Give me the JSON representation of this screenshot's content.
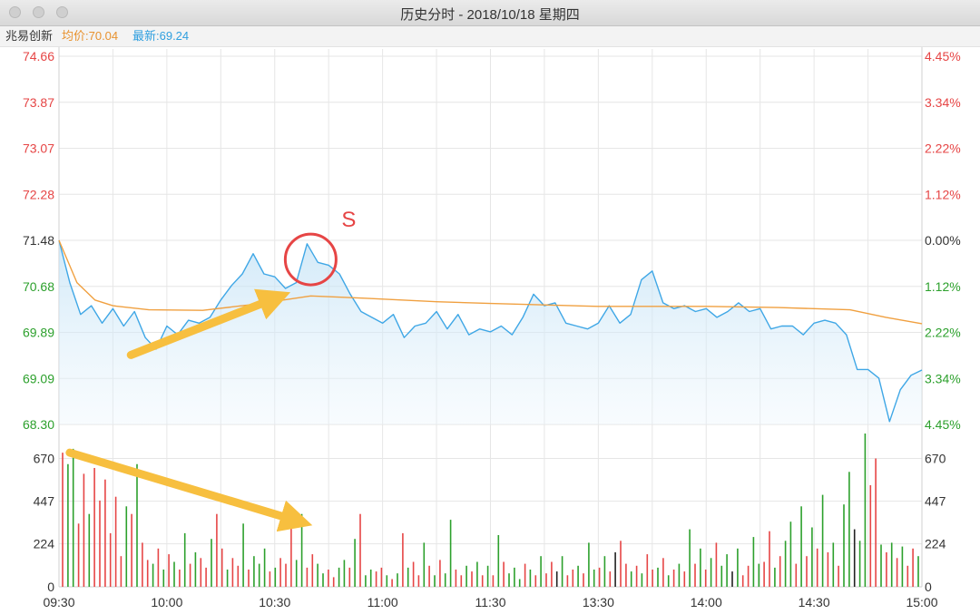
{
  "window": {
    "title": "历史分时 - 2018/10/18 星期四"
  },
  "info": {
    "stock_name": "兆易创新",
    "avg_label": "均价:70.04",
    "last_label": "最新:69.24"
  },
  "colors": {
    "up": "#e64545",
    "down": "#2ca02c",
    "neutral": "#333333",
    "price_line": "#3fa7e6",
    "avg_line": "#f0a040",
    "arrow": "#f7bf3f",
    "circle": "#e64545",
    "grid": "#e6e6e6"
  },
  "chart_data": {
    "type": "line",
    "title": "历史分时 - 2018/10/18 星期四",
    "date": "2018/10/18",
    "prev_close": 71.48,
    "price_axis": {
      "ticks": [
        "74.66",
        "73.87",
        "73.07",
        "72.28",
        "71.48",
        "70.68",
        "69.89",
        "69.09",
        "68.30"
      ],
      "ylim": [
        68.3,
        74.66
      ]
    },
    "pct_axis": {
      "ticks": [
        "4.45%",
        "3.34%",
        "2.22%",
        "1.12%",
        "0.00%",
        "1.12%",
        "2.22%",
        "3.34%",
        "4.45%"
      ]
    },
    "volume_axis": {
      "ticks": [
        "670",
        "447",
        "224",
        "0"
      ],
      "ylim": [
        0,
        800
      ]
    },
    "time_axis": {
      "labels": [
        "09:30",
        "10:00",
        "10:30",
        "11:00",
        "11:30",
        "13:30",
        "14:00",
        "14:30",
        "15:00"
      ]
    },
    "series": [
      {
        "name": "最新",
        "points": [
          [
            "09:30",
            71.48
          ],
          [
            "09:33",
            70.75
          ],
          [
            "09:36",
            70.2
          ],
          [
            "09:39",
            70.35
          ],
          [
            "09:42",
            70.05
          ],
          [
            "09:45",
            70.3
          ],
          [
            "09:48",
            70.0
          ],
          [
            "09:51",
            70.25
          ],
          [
            "09:54",
            69.8
          ],
          [
            "09:57",
            69.6
          ],
          [
            "10:00",
            70.0
          ],
          [
            "10:03",
            69.85
          ],
          [
            "10:06",
            70.1
          ],
          [
            "10:09",
            70.05
          ],
          [
            "10:12",
            70.15
          ],
          [
            "10:15",
            70.45
          ],
          [
            "10:18",
            70.7
          ],
          [
            "10:21",
            70.9
          ],
          [
            "10:24",
            71.25
          ],
          [
            "10:27",
            70.9
          ],
          [
            "10:30",
            70.85
          ],
          [
            "10:33",
            70.65
          ],
          [
            "10:36",
            70.75
          ],
          [
            "10:39",
            71.42
          ],
          [
            "10:42",
            71.1
          ],
          [
            "10:45",
            71.05
          ],
          [
            "10:48",
            70.9
          ],
          [
            "10:51",
            70.55
          ],
          [
            "10:54",
            70.25
          ],
          [
            "10:57",
            70.15
          ],
          [
            "11:00",
            70.05
          ],
          [
            "11:03",
            70.2
          ],
          [
            "11:06",
            69.8
          ],
          [
            "11:09",
            70.0
          ],
          [
            "11:12",
            70.05
          ],
          [
            "11:15",
            70.25
          ],
          [
            "11:18",
            69.95
          ],
          [
            "11:21",
            70.2
          ],
          [
            "11:24",
            69.85
          ],
          [
            "11:27",
            69.95
          ],
          [
            "11:30",
            69.9
          ],
          [
            "13:03",
            70.0
          ],
          [
            "13:06",
            69.85
          ],
          [
            "13:09",
            70.15
          ],
          [
            "13:12",
            70.55
          ],
          [
            "13:15",
            70.35
          ],
          [
            "13:18",
            70.4
          ],
          [
            "13:21",
            70.05
          ],
          [
            "13:24",
            70.0
          ],
          [
            "13:27",
            69.95
          ],
          [
            "13:30",
            70.05
          ],
          [
            "13:33",
            70.35
          ],
          [
            "13:36",
            70.05
          ],
          [
            "13:39",
            70.2
          ],
          [
            "13:42",
            70.8
          ],
          [
            "13:45",
            70.95
          ],
          [
            "13:48",
            70.4
          ],
          [
            "13:51",
            70.3
          ],
          [
            "13:54",
            70.35
          ],
          [
            "13:57",
            70.25
          ],
          [
            "14:00",
            70.3
          ],
          [
            "14:03",
            70.15
          ],
          [
            "14:06",
            70.25
          ],
          [
            "14:09",
            70.4
          ],
          [
            "14:12",
            70.25
          ],
          [
            "14:15",
            70.3
          ],
          [
            "14:18",
            69.95
          ],
          [
            "14:21",
            70.0
          ],
          [
            "14:24",
            70.0
          ],
          [
            "14:27",
            69.85
          ],
          [
            "14:30",
            70.05
          ],
          [
            "14:33",
            70.1
          ],
          [
            "14:36",
            70.05
          ],
          [
            "14:39",
            69.85
          ],
          [
            "14:42",
            69.25
          ],
          [
            "14:45",
            69.25
          ],
          [
            "14:48",
            69.1
          ],
          [
            "14:51",
            68.35
          ],
          [
            "14:54",
            68.9
          ],
          [
            "14:57",
            69.15
          ],
          [
            "15:00",
            69.24
          ]
        ]
      },
      {
        "name": "均价",
        "points": [
          [
            "09:30",
            71.48
          ],
          [
            "09:35",
            70.75
          ],
          [
            "09:40",
            70.45
          ],
          [
            "09:45",
            70.35
          ],
          [
            "09:55",
            70.28
          ],
          [
            "10:10",
            70.27
          ],
          [
            "10:25",
            70.38
          ],
          [
            "10:40",
            70.52
          ],
          [
            "10:55",
            70.48
          ],
          [
            "11:15",
            70.42
          ],
          [
            "11:30",
            70.39
          ],
          [
            "13:30",
            70.34
          ],
          [
            "14:00",
            70.34
          ],
          [
            "14:20",
            70.32
          ],
          [
            "14:40",
            70.28
          ],
          [
            "14:50",
            70.15
          ],
          [
            "15:00",
            70.04
          ]
        ]
      }
    ],
    "volume": [
      [
        700,
        "up"
      ],
      [
        640,
        "down"
      ],
      [
        720,
        "down"
      ],
      [
        330,
        "up"
      ],
      [
        590,
        "up"
      ],
      [
        380,
        "down"
      ],
      [
        620,
        "up"
      ],
      [
        450,
        "up"
      ],
      [
        560,
        "up"
      ],
      [
        280,
        "up"
      ],
      [
        470,
        "up"
      ],
      [
        160,
        "up"
      ],
      [
        420,
        "down"
      ],
      [
        380,
        "up"
      ],
      [
        640,
        "down"
      ],
      [
        230,
        "up"
      ],
      [
        140,
        "up"
      ],
      [
        120,
        "down"
      ],
      [
        200,
        "up"
      ],
      [
        90,
        "down"
      ],
      [
        170,
        "up"
      ],
      [
        130,
        "down"
      ],
      [
        90,
        "up"
      ],
      [
        280,
        "down"
      ],
      [
        120,
        "up"
      ],
      [
        180,
        "down"
      ],
      [
        150,
        "up"
      ],
      [
        100,
        "up"
      ],
      [
        250,
        "down"
      ],
      [
        380,
        "up"
      ],
      [
        200,
        "up"
      ],
      [
        90,
        "down"
      ],
      [
        150,
        "up"
      ],
      [
        110,
        "up"
      ],
      [
        330,
        "down"
      ],
      [
        90,
        "up"
      ],
      [
        160,
        "down"
      ],
      [
        120,
        "down"
      ],
      [
        200,
        "down"
      ],
      [
        80,
        "up"
      ],
      [
        100,
        "down"
      ],
      [
        150,
        "up"
      ],
      [
        120,
        "up"
      ],
      [
        420,
        "up"
      ],
      [
        140,
        "down"
      ],
      [
        380,
        "down"
      ],
      [
        100,
        "up"
      ],
      [
        170,
        "up"
      ],
      [
        120,
        "down"
      ],
      [
        70,
        "down"
      ],
      [
        90,
        "up"
      ],
      [
        50,
        "up"
      ],
      [
        100,
        "down"
      ],
      [
        140,
        "down"
      ],
      [
        100,
        "up"
      ],
      [
        250,
        "down"
      ],
      [
        380,
        "up"
      ],
      [
        60,
        "down"
      ],
      [
        90,
        "down"
      ],
      [
        80,
        "up"
      ],
      [
        100,
        "up"
      ],
      [
        60,
        "down"
      ],
      [
        40,
        "up"
      ],
      [
        70,
        "down"
      ],
      [
        280,
        "up"
      ],
      [
        100,
        "down"
      ],
      [
        130,
        "up"
      ],
      [
        60,
        "up"
      ],
      [
        230,
        "down"
      ],
      [
        110,
        "up"
      ],
      [
        60,
        "down"
      ],
      [
        140,
        "up"
      ],
      [
        70,
        "down"
      ],
      [
        350,
        "down"
      ],
      [
        90,
        "up"
      ],
      [
        60,
        "up"
      ],
      [
        110,
        "down"
      ],
      [
        80,
        "up"
      ],
      [
        130,
        "down"
      ],
      [
        60,
        "up"
      ],
      [
        110,
        "down"
      ],
      [
        60,
        "up"
      ],
      [
        270,
        "down"
      ],
      [
        130,
        "up"
      ],
      [
        70,
        "down"
      ],
      [
        100,
        "down"
      ],
      [
        40,
        "down"
      ],
      [
        120,
        "up"
      ],
      [
        90,
        "down"
      ],
      [
        60,
        "up"
      ],
      [
        160,
        "down"
      ],
      [
        70,
        "up"
      ],
      [
        130,
        "up"
      ],
      [
        80,
        "neutral"
      ],
      [
        160,
        "down"
      ],
      [
        60,
        "up"
      ],
      [
        90,
        "up"
      ],
      [
        110,
        "down"
      ],
      [
        70,
        "up"
      ],
      [
        230,
        "down"
      ],
      [
        90,
        "down"
      ],
      [
        100,
        "up"
      ],
      [
        160,
        "down"
      ],
      [
        80,
        "up"
      ],
      [
        180,
        "neutral"
      ],
      [
        240,
        "up"
      ],
      [
        120,
        "up"
      ],
      [
        80,
        "down"
      ],
      [
        110,
        "up"
      ],
      [
        70,
        "down"
      ],
      [
        170,
        "up"
      ],
      [
        90,
        "up"
      ],
      [
        100,
        "down"
      ],
      [
        150,
        "up"
      ],
      [
        60,
        "down"
      ],
      [
        90,
        "up"
      ],
      [
        120,
        "down"
      ],
      [
        80,
        "up"
      ],
      [
        300,
        "down"
      ],
      [
        120,
        "up"
      ],
      [
        200,
        "down"
      ],
      [
        90,
        "up"
      ],
      [
        150,
        "down"
      ],
      [
        230,
        "up"
      ],
      [
        110,
        "down"
      ],
      [
        170,
        "down"
      ],
      [
        80,
        "neutral"
      ],
      [
        200,
        "down"
      ],
      [
        60,
        "up"
      ],
      [
        110,
        "up"
      ],
      [
        260,
        "down"
      ],
      [
        120,
        "down"
      ],
      [
        130,
        "up"
      ],
      [
        290,
        "up"
      ],
      [
        100,
        "down"
      ],
      [
        160,
        "up"
      ],
      [
        240,
        "down"
      ],
      [
        340,
        "down"
      ],
      [
        120,
        "up"
      ],
      [
        420,
        "down"
      ],
      [
        160,
        "up"
      ],
      [
        310,
        "down"
      ],
      [
        200,
        "up"
      ],
      [
        480,
        "down"
      ],
      [
        180,
        "up"
      ],
      [
        230,
        "down"
      ],
      [
        110,
        "up"
      ],
      [
        430,
        "down"
      ],
      [
        600,
        "down"
      ],
      [
        300,
        "neutral"
      ],
      [
        240,
        "down"
      ],
      [
        800,
        "down"
      ],
      [
        530,
        "up"
      ],
      [
        670,
        "up"
      ],
      [
        220,
        "down"
      ],
      [
        180,
        "up"
      ],
      [
        230,
        "down"
      ],
      [
        150,
        "up"
      ],
      [
        210,
        "down"
      ],
      [
        110,
        "up"
      ],
      [
        200,
        "up"
      ],
      [
        160,
        "down"
      ]
    ],
    "annotations": [
      {
        "type": "circle",
        "label": "S",
        "time": "10:40",
        "price": 71.15
      },
      {
        "type": "arrow",
        "direction": "up",
        "from": [
          "09:50",
          69.5
        ],
        "to": [
          "10:31",
          70.5
        ]
      },
      {
        "type": "arrow",
        "direction": "down",
        "panel": "volume",
        "from": [
          "09:33",
          700
        ],
        "to": [
          "10:37",
          340
        ]
      }
    ]
  }
}
